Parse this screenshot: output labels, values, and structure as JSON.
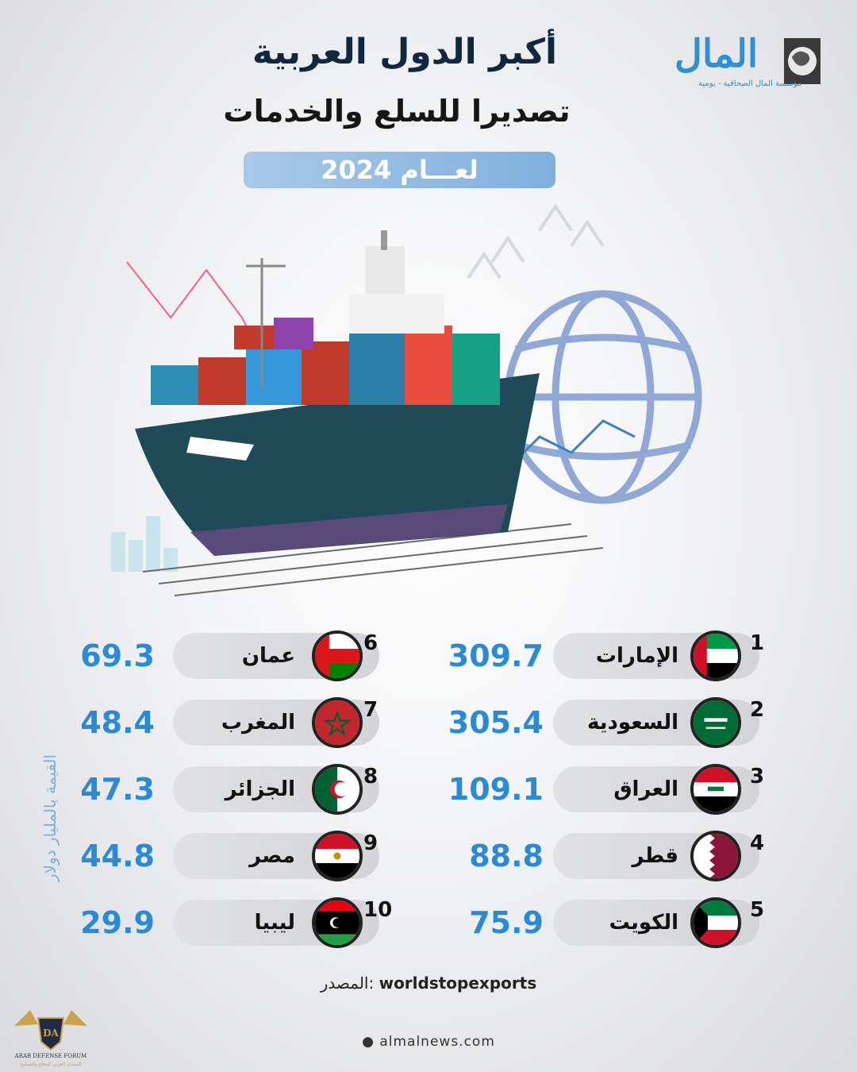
{
  "header": {
    "title_line1": "أكبر الدول العربية",
    "title_line2": "تصديرا للسلع والخدمات",
    "year_label": "لعـــام 2024",
    "logo_text": "المال",
    "logo_sub": "مؤسسة المال الصحافية - يومية"
  },
  "unit_label": "القيمة بالمليار دولار",
  "rankings": [
    {
      "rank": "1",
      "country": "الإمارات",
      "value": "309.7",
      "flag": "uae-flag-icon"
    },
    {
      "rank": "2",
      "country": "السعودية",
      "value": "305.4",
      "flag": "saudi-flag-icon"
    },
    {
      "rank": "3",
      "country": "العراق",
      "value": "109.1",
      "flag": "iraq-flag-icon"
    },
    {
      "rank": "4",
      "country": "قطر",
      "value": "88.8",
      "flag": "qatar-flag-icon"
    },
    {
      "rank": "5",
      "country": "الكويت",
      "value": "75.9",
      "flag": "kuwait-flag-icon"
    },
    {
      "rank": "6",
      "country": "عمان",
      "value": "69.3",
      "flag": "oman-flag-icon"
    },
    {
      "rank": "7",
      "country": "المغرب",
      "value": "48.4",
      "flag": "morocco-flag-icon"
    },
    {
      "rank": "8",
      "country": "الجزائر",
      "value": "47.3",
      "flag": "algeria-flag-icon"
    },
    {
      "rank": "9",
      "country": "مصر",
      "value": "44.8",
      "flag": "egypt-flag-icon"
    },
    {
      "rank": "10",
      "country": "ليبيا",
      "value": "29.9",
      "flag": "libya-flag-icon"
    }
  ],
  "source": {
    "label": "المصدر:",
    "value": "worldstopexports"
  },
  "site": "almalnews.com",
  "forum": {
    "line1": "DA",
    "line2": "ARAB DEFENSE FORUM",
    "line3": "المنتدى العربي للدفاع والتسليح"
  },
  "colors": {
    "accent": "#2b8ad6",
    "title": "#0f2740",
    "pill": "#d8d9dc"
  }
}
